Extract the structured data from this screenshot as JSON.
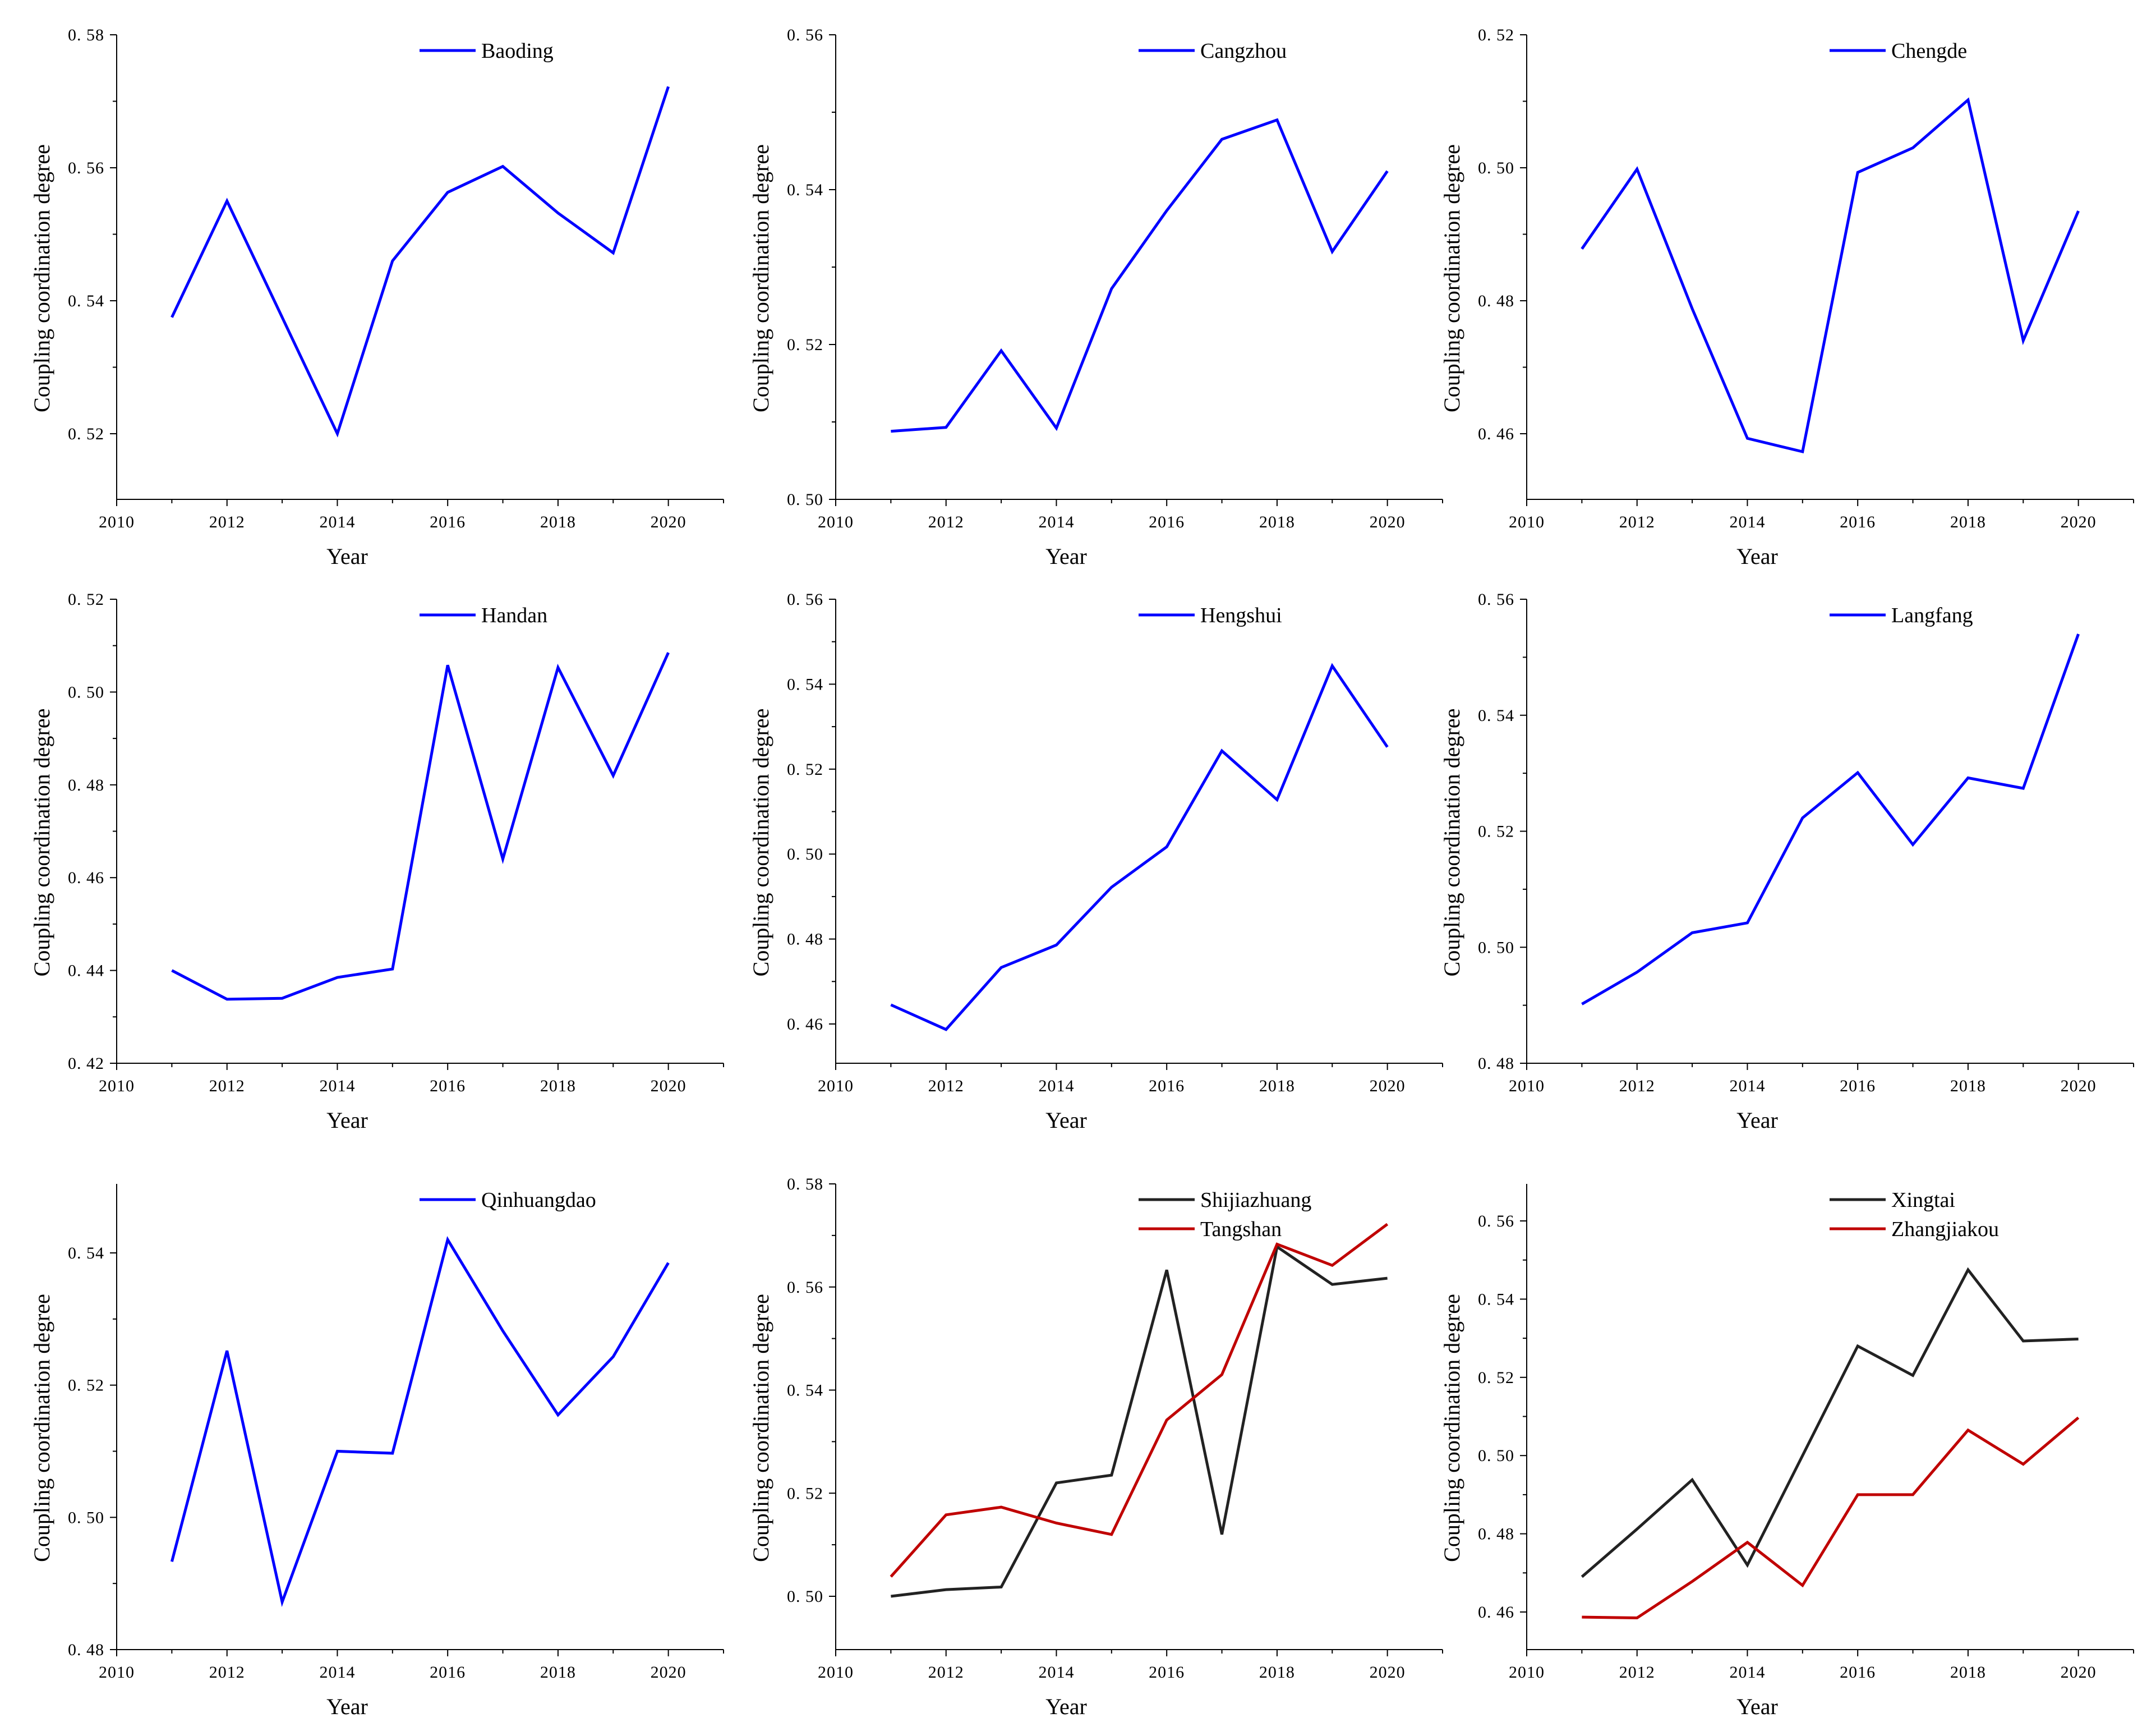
{
  "colors": {
    "blue": "#0000ff",
    "black": "#222222",
    "red": "#c00000"
  },
  "chart_data": [
    {
      "type": "line",
      "title": "",
      "xlabel": "Year",
      "ylabel": "Coupling coordination degree",
      "xlim": [
        2010,
        2021
      ],
      "ylim": [
        0.51,
        0.58
      ],
      "xticks": [
        2010,
        2012,
        2014,
        2016,
        2018,
        2020
      ],
      "xtick_labels": [
        "2010",
        "2012",
        "2014",
        "2016",
        "2018",
        "2020"
      ],
      "yticks": [
        0.52,
        0.54,
        0.56,
        0.58
      ],
      "ytick_labels": [
        "0. 52",
        "0. 54",
        "0. 56",
        "0. 58"
      ],
      "x": [
        2011,
        2012,
        2013,
        2014,
        2015,
        2016,
        2017,
        2018,
        2019,
        2020
      ],
      "series": [
        {
          "name": "Baoding",
          "color": "blue",
          "values": [
            0.5375,
            0.555,
            0.5375,
            0.52,
            0.546,
            0.5563,
            0.5602,
            0.5532,
            0.5472,
            0.5722
          ]
        }
      ]
    },
    {
      "type": "line",
      "title": "",
      "xlabel": "Year",
      "ylabel": "Coupling coordination degree",
      "xlim": [
        2010,
        2021
      ],
      "ylim": [
        0.5,
        0.56
      ],
      "xticks": [
        2010,
        2012,
        2014,
        2016,
        2018,
        2020
      ],
      "xtick_labels": [
        "2010",
        "2012",
        "2014",
        "2016",
        "2018",
        "2020"
      ],
      "yticks": [
        0.5,
        0.52,
        0.54,
        0.56
      ],
      "ytick_labels": [
        "0. 50",
        "0. 52",
        "0. 54",
        "0. 56"
      ],
      "x": [
        2011,
        2012,
        2013,
        2014,
        2015,
        2016,
        2017,
        2018,
        2019,
        2020
      ],
      "series": [
        {
          "name": "Cangzhou",
          "color": "blue",
          "values": [
            0.5088,
            0.5093,
            0.5192,
            0.5092,
            0.5272,
            0.5373,
            0.5465,
            0.549,
            0.532,
            0.5424
          ]
        }
      ]
    },
    {
      "type": "line",
      "title": "",
      "xlabel": "Year",
      "ylabel": "Coupling coordination degree",
      "xlim": [
        2010,
        2021
      ],
      "ylim": [
        0.45,
        0.52
      ],
      "xticks": [
        2010,
        2012,
        2014,
        2016,
        2018,
        2020
      ],
      "xtick_labels": [
        "2010",
        "2012",
        "2014",
        "2016",
        "2018",
        "2020"
      ],
      "yticks": [
        0.46,
        0.48,
        0.5,
        0.52
      ],
      "ytick_labels": [
        "0. 46",
        "0. 48",
        "0. 50",
        "0. 52"
      ],
      "x": [
        2011,
        2012,
        2013,
        2014,
        2015,
        2016,
        2017,
        2018,
        2019,
        2020
      ],
      "series": [
        {
          "name": "Chengde",
          "color": "blue",
          "values": [
            0.4878,
            0.4998,
            0.4788,
            0.4593,
            0.4573,
            0.4993,
            0.503,
            0.5102,
            0.474,
            0.4935
          ]
        }
      ]
    },
    {
      "type": "line",
      "title": "",
      "xlabel": "Year",
      "ylabel": "Coupling coordination degree",
      "xlim": [
        2010,
        2021
      ],
      "ylim": [
        0.42,
        0.52
      ],
      "xticks": [
        2010,
        2012,
        2014,
        2016,
        2018,
        2020
      ],
      "xtick_labels": [
        "2010",
        "2012",
        "2014",
        "2016",
        "2018",
        "2020"
      ],
      "yticks": [
        0.42,
        0.44,
        0.46,
        0.48,
        0.5,
        0.52
      ],
      "ytick_labels": [
        "0. 42",
        "0. 44",
        "0. 46",
        "0. 48",
        "0. 50",
        "0. 52"
      ],
      "x": [
        2011,
        2012,
        2013,
        2014,
        2015,
        2016,
        2017,
        2018,
        2019,
        2020
      ],
      "series": [
        {
          "name": "Handan",
          "color": "blue",
          "values": [
            0.44,
            0.4338,
            0.434,
            0.4385,
            0.4403,
            0.5058,
            0.464,
            0.5053,
            0.482,
            0.5085
          ]
        }
      ]
    },
    {
      "type": "line",
      "title": "",
      "xlabel": "Year",
      "ylabel": "Coupling coordination degree",
      "xlim": [
        2010,
        2021
      ],
      "ylim": [
        0.45,
        0.56
      ],
      "xticks": [
        2010,
        2012,
        2014,
        2016,
        2018,
        2020
      ],
      "xtick_labels": [
        "2010",
        "2012",
        "2014",
        "2016",
        "2018",
        "2020"
      ],
      "yticks": [
        0.46,
        0.48,
        0.5,
        0.52,
        0.54,
        0.56
      ],
      "ytick_labels": [
        "0. 46",
        "0. 48",
        "0. 50",
        "0. 52",
        "0. 54",
        "0. 56"
      ],
      "x": [
        2011,
        2012,
        2013,
        2014,
        2015,
        2016,
        2017,
        2018,
        2019,
        2020
      ],
      "series": [
        {
          "name": "Hengshui",
          "color": "blue",
          "values": [
            0.4645,
            0.4587,
            0.4733,
            0.4786,
            0.4922,
            0.5017,
            0.5243,
            0.5128,
            0.5443,
            0.5252
          ]
        }
      ]
    },
    {
      "type": "line",
      "title": "",
      "xlabel": "Year",
      "ylabel": "Coupling coordination degree",
      "xlim": [
        2010,
        2021
      ],
      "ylim": [
        0.48,
        0.56
      ],
      "xticks": [
        2010,
        2012,
        2014,
        2016,
        2018,
        2020
      ],
      "xtick_labels": [
        "2010",
        "2012",
        "2014",
        "2016",
        "2018",
        "2020"
      ],
      "yticks": [
        0.48,
        0.5,
        0.52,
        0.54,
        0.56
      ],
      "ytick_labels": [
        "0. 48",
        "0. 50",
        "0. 52",
        "0. 54",
        "0. 56"
      ],
      "x": [
        2011,
        2012,
        2013,
        2014,
        2015,
        2016,
        2017,
        2018,
        2019,
        2020
      ],
      "series": [
        {
          "name": "Langfang",
          "color": "blue",
          "values": [
            0.4902,
            0.4957,
            0.5025,
            0.5042,
            0.5223,
            0.5301,
            0.5177,
            0.5292,
            0.5274,
            0.554
          ]
        }
      ]
    },
    {
      "type": "line",
      "title": "",
      "xlabel": "Year",
      "ylabel": "Coupling coordination degree",
      "xlim": [
        2010,
        2021
      ],
      "ylim": [
        0.48,
        0.55
      ],
      "xticks": [
        2010,
        2012,
        2014,
        2016,
        2018,
        2020
      ],
      "xtick_labels": [
        "2010",
        "2012",
        "2014",
        "2016",
        "2018",
        "2020"
      ],
      "yticks": [
        0.48,
        0.5,
        0.52,
        0.54
      ],
      "ytick_labels": [
        "0. 48",
        "0. 50",
        "0. 52",
        "0. 54"
      ],
      "x": [
        2011,
        2012,
        2013,
        2014,
        2015,
        2016,
        2017,
        2018,
        2019,
        2020
      ],
      "series": [
        {
          "name": "Qinhuangdao",
          "color": "blue",
          "values": [
            0.4933,
            0.5252,
            0.4872,
            0.51,
            0.5097,
            0.542,
            0.5282,
            0.5155,
            0.5243,
            0.5385
          ]
        }
      ]
    },
    {
      "type": "line",
      "title": "",
      "xlabel": "Year",
      "ylabel": "Coupling coordination degree",
      "xlim": [
        2010,
        2021
      ],
      "ylim": [
        0.495,
        0.58
      ],
      "xticks": [
        2010,
        2012,
        2014,
        2016,
        2018,
        2020
      ],
      "xtick_labels": [
        "2010",
        "2012",
        "2014",
        "2016",
        "2018",
        "2020"
      ],
      "yticks": [
        0.5,
        0.52,
        0.54,
        0.56,
        0.58
      ],
      "ytick_labels": [
        "0. 50",
        "0. 52",
        "0. 54",
        "0. 56",
        "0. 58"
      ],
      "x": [
        2011,
        2012,
        2013,
        2014,
        2015,
        2016,
        2017,
        2018,
        2019,
        2020
      ],
      "series": [
        {
          "name": "Shijiazhuang",
          "color": "black",
          "values": [
            0.5,
            0.5013,
            0.5018,
            0.522,
            0.5235,
            0.5633,
            0.512,
            0.5678,
            0.5605,
            0.5617
          ]
        },
        {
          "name": "Tangshan",
          "color": "red",
          "values": [
            0.5038,
            0.5158,
            0.5173,
            0.5142,
            0.512,
            0.5342,
            0.543,
            0.5683,
            0.5642,
            0.5722
          ]
        }
      ]
    },
    {
      "type": "line",
      "title": "",
      "xlabel": "Year",
      "ylabel": "Coupling coordination degree",
      "xlim": [
        2010,
        2021
      ],
      "ylim": [
        0.45,
        0.57
      ],
      "xticks": [
        2010,
        2012,
        2014,
        2016,
        2018,
        2020
      ],
      "xtick_labels": [
        "2010",
        "2012",
        "2014",
        "2016",
        "2018",
        "2020"
      ],
      "yticks": [
        0.46,
        0.48,
        0.5,
        0.52,
        0.54,
        0.56
      ],
      "ytick_labels": [
        "0. 46",
        "0. 48",
        "0. 50",
        "0. 52",
        "0. 54",
        "0. 56"
      ],
      "x": [
        2011,
        2012,
        2013,
        2014,
        2015,
        2016,
        2017,
        2018,
        2019,
        2020
      ],
      "series": [
        {
          "name": "Xingtai",
          "color": "black",
          "values": [
            0.469,
            0.4812,
            0.4938,
            0.472,
            0.5,
            0.528,
            0.5205,
            0.5475,
            0.5293,
            0.5298
          ]
        },
        {
          "name": "Zhangjiakou",
          "color": "red",
          "values": [
            0.4587,
            0.4585,
            0.4678,
            0.4778,
            0.4668,
            0.49,
            0.49,
            0.5065,
            0.4978,
            0.5097
          ]
        }
      ]
    }
  ]
}
